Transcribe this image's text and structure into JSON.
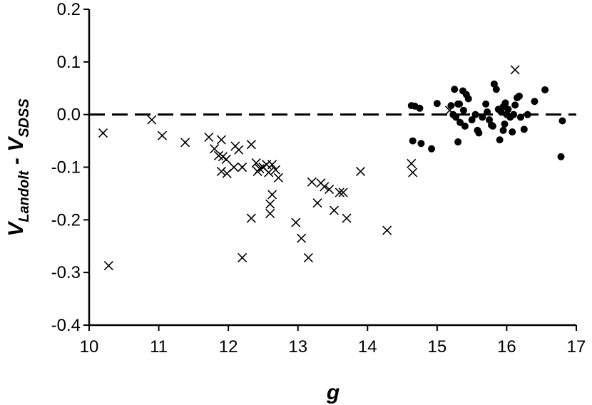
{
  "chart_data": {
    "type": "scatter",
    "xlabel": "g",
    "ylabel": {
      "main": "V",
      "sub1": "Landolt",
      "sep": " - ",
      "main2": "V",
      "sub2": "SDSS"
    },
    "xlim": [
      10,
      17
    ],
    "ylim": [
      -0.4,
      0.2
    ],
    "xticks": [
      "10",
      "11",
      "12",
      "13",
      "14",
      "15",
      "16",
      "17"
    ],
    "yticks": [
      "0.2",
      "0.1",
      "0.0",
      "-0.1",
      "-0.2",
      "-0.3",
      "-0.4"
    ],
    "reference_line": {
      "y": 0.0,
      "style": "dashed"
    },
    "grid": false,
    "legend": "none",
    "series": [
      {
        "marker": "x",
        "color": "#000000",
        "points": [
          [
            10.2,
            -0.035
          ],
          [
            10.28,
            -0.287
          ],
          [
            10.9,
            -0.01
          ],
          [
            11.05,
            -0.04
          ],
          [
            11.38,
            -0.053
          ],
          [
            11.72,
            -0.043
          ],
          [
            11.8,
            -0.065
          ],
          [
            11.86,
            -0.078
          ],
          [
            11.9,
            -0.048
          ],
          [
            11.92,
            -0.08
          ],
          [
            11.9,
            -0.108
          ],
          [
            11.97,
            -0.085
          ],
          [
            11.98,
            -0.112
          ],
          [
            12.08,
            -0.1
          ],
          [
            12.1,
            -0.06
          ],
          [
            12.15,
            -0.067
          ],
          [
            12.2,
            -0.1
          ],
          [
            12.2,
            -0.272
          ],
          [
            12.33,
            -0.057
          ],
          [
            12.33,
            -0.197
          ],
          [
            12.4,
            -0.092
          ],
          [
            12.42,
            -0.108
          ],
          [
            12.45,
            -0.103
          ],
          [
            12.5,
            -0.1
          ],
          [
            12.55,
            -0.095
          ],
          [
            12.58,
            -0.11
          ],
          [
            12.6,
            -0.188
          ],
          [
            12.6,
            -0.17
          ],
          [
            12.63,
            -0.152
          ],
          [
            12.63,
            -0.095
          ],
          [
            12.68,
            -0.105
          ],
          [
            12.72,
            -0.12
          ],
          [
            12.97,
            -0.205
          ],
          [
            13.05,
            -0.235
          ],
          [
            13.15,
            -0.272
          ],
          [
            13.2,
            -0.128
          ],
          [
            13.28,
            -0.168
          ],
          [
            13.33,
            -0.13
          ],
          [
            13.38,
            -0.137
          ],
          [
            13.45,
            -0.142
          ],
          [
            13.52,
            -0.182
          ],
          [
            13.6,
            -0.148
          ],
          [
            13.65,
            -0.148
          ],
          [
            13.7,
            -0.197
          ],
          [
            13.9,
            -0.108
          ],
          [
            14.28,
            -0.22
          ],
          [
            14.63,
            -0.093
          ],
          [
            14.65,
            -0.11
          ],
          [
            15.18,
            0.008
          ],
          [
            16.12,
            0.085
          ]
        ]
      },
      {
        "marker": "dot",
        "color": "#000000",
        "points": [
          [
            14.63,
            0.017
          ],
          [
            14.68,
            0.016
          ],
          [
            14.75,
            0.012
          ],
          [
            14.65,
            -0.05
          ],
          [
            14.77,
            -0.055
          ],
          [
            14.92,
            -0.065
          ],
          [
            15.0,
            0.021
          ],
          [
            15.2,
            0.017
          ],
          [
            15.25,
            0.048
          ],
          [
            15.23,
            0.0
          ],
          [
            15.27,
            -0.005
          ],
          [
            15.3,
            0.02
          ],
          [
            15.32,
            0.02
          ],
          [
            15.3,
            -0.052
          ],
          [
            15.33,
            -0.015
          ],
          [
            15.37,
            0.045
          ],
          [
            15.38,
            0.008
          ],
          [
            15.42,
            0.038
          ],
          [
            15.4,
            -0.022
          ],
          [
            15.45,
            0.03
          ],
          [
            15.5,
            -0.01
          ],
          [
            15.55,
            0.0
          ],
          [
            15.58,
            -0.03
          ],
          [
            15.6,
            -0.035
          ],
          [
            15.65,
            -0.005
          ],
          [
            15.7,
            0.02
          ],
          [
            15.72,
            0.005
          ],
          [
            15.75,
            -0.01
          ],
          [
            15.78,
            -0.02
          ],
          [
            15.82,
            0.058
          ],
          [
            15.85,
            0.048
          ],
          [
            15.88,
            0.01
          ],
          [
            15.9,
            -0.048
          ],
          [
            15.92,
            0.005
          ],
          [
            15.95,
            0.015
          ],
          [
            15.97,
            -0.018
          ],
          [
            15.98,
            0.022
          ],
          [
            16.0,
            0.0
          ],
          [
            16.02,
            0.01
          ],
          [
            16.05,
            -0.005
          ],
          [
            16.08,
            -0.033
          ],
          [
            16.1,
            0.0
          ],
          [
            16.12,
            0.018
          ],
          [
            16.15,
            0.032
          ],
          [
            16.2,
            -0.005
          ],
          [
            16.25,
            -0.028
          ],
          [
            16.3,
            0.0
          ],
          [
            16.4,
            0.025
          ],
          [
            16.55,
            0.047
          ],
          [
            16.8,
            -0.012
          ],
          [
            16.78,
            -0.08
          ],
          [
            15.95,
            -0.03
          ],
          [
            15.8,
            -0.022
          ],
          [
            16.18,
            0.035
          ]
        ]
      }
    ]
  }
}
